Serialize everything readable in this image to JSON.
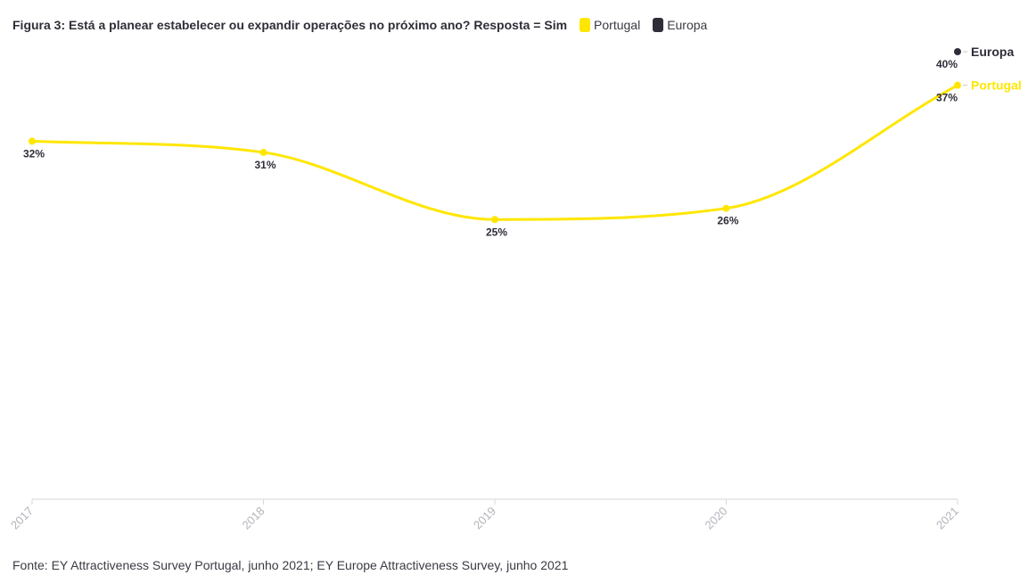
{
  "chart_data": {
    "type": "line",
    "title": "Figura 3: Está a planear estabelecer ou expandir operações no próximo ano? Resposta = Sim",
    "x": [
      "2017",
      "2018",
      "2019",
      "2020",
      "2021"
    ],
    "ylim": [
      0,
      40
    ],
    "grid": false,
    "legend_placement": "top",
    "series": [
      {
        "name": "Portugal",
        "color": "#ffe600",
        "values": [
          32,
          31,
          25,
          26,
          37
        ],
        "labels": [
          "32%",
          "31%",
          "25%",
          "26%",
          "37%"
        ],
        "end_label": "Portugal"
      },
      {
        "name": "Europa",
        "color": "#2e2e38",
        "values": [
          null,
          null,
          null,
          null,
          40
        ],
        "labels": [
          null,
          null,
          null,
          null,
          "40%"
        ],
        "end_label": "Europa"
      }
    ]
  },
  "legend": [
    {
      "label": "Portugal",
      "color": "#ffe600"
    },
    {
      "label": "Europa",
      "color": "#2e2e38"
    }
  ],
  "source": "Fonte: EY Attractiveness Survey Portugal, junho 2021; EY Europe Attractiveness Survey, junho 2021"
}
